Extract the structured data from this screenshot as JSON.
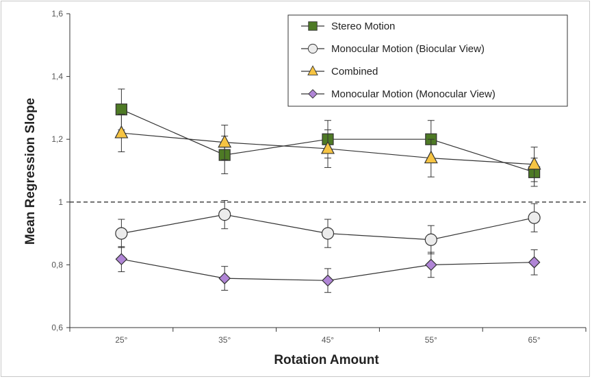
{
  "chart_data": {
    "type": "line",
    "xlabel": "Rotation Amount",
    "ylabel": "Mean Regression  Slope",
    "categories": [
      "25°",
      "35°",
      "45°",
      "55°",
      "65°"
    ],
    "ylim": [
      0.6,
      1.6
    ],
    "yticks": [
      0.6,
      0.8,
      1,
      1.2,
      1.4,
      1.6
    ],
    "ytick_labels": [
      "0,6",
      "0,8",
      "1",
      "1,2",
      "1,4",
      "1,6"
    ],
    "reference_line": 1.0,
    "legend_position": "top-right",
    "series": [
      {
        "name": "Stereo Motion",
        "marker": "square",
        "color": "#4e7a25",
        "values": [
          1.295,
          1.15,
          1.2,
          1.2,
          1.095
        ],
        "errors": [
          0.065,
          0.06,
          0.06,
          0.06,
          0.045
        ]
      },
      {
        "name": "Monocular Motion (Biocular View)",
        "marker": "circle",
        "color": "#ececec",
        "values": [
          0.9,
          0.96,
          0.9,
          0.88,
          0.95
        ],
        "errors": [
          0.045,
          0.045,
          0.045,
          0.045,
          0.045
        ]
      },
      {
        "name": "Combined",
        "marker": "triangle",
        "color": "#f6c443",
        "values": [
          1.22,
          1.19,
          1.17,
          1.14,
          1.12
        ],
        "errors": [
          0.06,
          0.055,
          0.06,
          0.06,
          0.055
        ]
      },
      {
        "name": "Monocular Motion (Monocular View)",
        "marker": "diamond",
        "color": "#b085d6",
        "values": [
          0.818,
          0.757,
          0.75,
          0.8,
          0.808
        ],
        "errors": [
          0.04,
          0.038,
          0.038,
          0.04,
          0.04
        ]
      }
    ]
  }
}
